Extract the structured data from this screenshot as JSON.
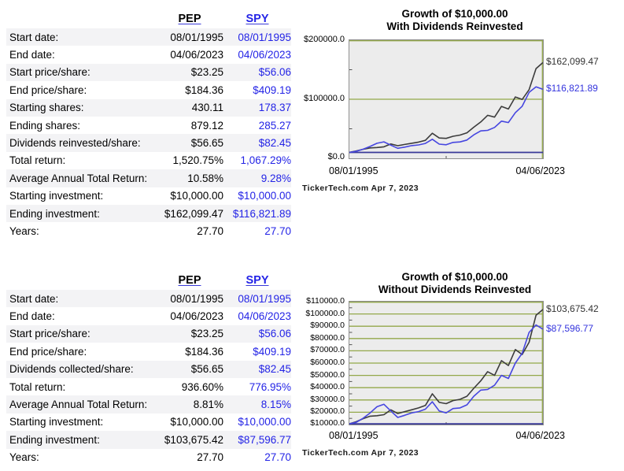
{
  "colors": {
    "pep_line": "#3c3c3c",
    "spy_line": "#4646e0",
    "spy_text": "#2323e6",
    "grid_green": "#93a84a",
    "baseline_navy": "#3a3a99",
    "plot_bg": "#ececec",
    "row_alt_bg": "#f3f3f5"
  },
  "tables": [
    {
      "columns": [
        "PEP",
        "SPY"
      ],
      "rows": [
        {
          "label": "Start date:",
          "pep": "08/01/1995",
          "spy": "08/01/1995"
        },
        {
          "label": "End date:",
          "pep": "04/06/2023",
          "spy": "04/06/2023"
        },
        {
          "label": "Start price/share:",
          "pep": "$23.25",
          "spy": "$56.06"
        },
        {
          "label": "End price/share:",
          "pep": "$184.36",
          "spy": "$409.19"
        },
        {
          "label": "Starting shares:",
          "pep": "430.11",
          "spy": "178.37"
        },
        {
          "label": "Ending shares:",
          "pep": "879.12",
          "spy": "285.27"
        },
        {
          "label": "Dividends reinvested/share:",
          "pep": "$56.65",
          "spy": "$82.45"
        },
        {
          "label": "Total return:",
          "pep": "1,520.75%",
          "spy": "1,067.29%"
        },
        {
          "label": "Average Annual Total Return:",
          "pep": "10.58%",
          "spy": "9.28%"
        },
        {
          "label": "Starting investment:",
          "pep": "$10,000.00",
          "spy": "$10,000.00"
        },
        {
          "label": "Ending investment:",
          "pep": "$162,099.47",
          "spy": "$116,821.89"
        },
        {
          "label": "Years:",
          "pep": "27.70",
          "spy": "27.70"
        }
      ]
    },
    {
      "columns": [
        "PEP",
        "SPY"
      ],
      "rows": [
        {
          "label": "Start date:",
          "pep": "08/01/1995",
          "spy": "08/01/1995"
        },
        {
          "label": "End date:",
          "pep": "04/06/2023",
          "spy": "04/06/2023"
        },
        {
          "label": "Start price/share:",
          "pep": "$23.25",
          "spy": "$56.06"
        },
        {
          "label": "End price/share:",
          "pep": "$184.36",
          "spy": "$409.19"
        },
        {
          "label": "Dividends collected/share:",
          "pep": "$56.65",
          "spy": "$82.45"
        },
        {
          "label": "Total return:",
          "pep": "936.60%",
          "spy": "776.95%"
        },
        {
          "label": "Average Annual Total Return:",
          "pep": "8.81%",
          "spy": "8.15%"
        },
        {
          "label": "Starting investment:",
          "pep": "$10,000.00",
          "spy": "$10,000.00"
        },
        {
          "label": "Ending investment:",
          "pep": "$103,675.42",
          "spy": "$87,596.77"
        },
        {
          "label": "Years:",
          "pep": "27.70",
          "spy": "27.70"
        }
      ]
    }
  ],
  "chart_data": [
    {
      "type": "line",
      "title": "Growth of $10,000.00",
      "subtitle": "With Dividends Reinvested",
      "xlabel_start": "08/01/1995",
      "xlabel_end": "04/06/2023",
      "attribution": "TickerTech.com  Apr 7, 2023",
      "ylim": [
        0,
        200000
      ],
      "yticks": [
        {
          "label": "$200000.0",
          "value": 200000
        },
        {
          "label": "$100000.0",
          "value": 100000
        },
        {
          "label": "$0.0",
          "value": 0
        }
      ],
      "gridlines": [
        200000,
        100000
      ],
      "grid_color": "#93a84a",
      "baseline": 10000,
      "baseline_color": "#3a3a99",
      "x_years": [
        1995,
        1996,
        1997,
        1998,
        1999,
        2000,
        2001,
        2002,
        2003,
        2004,
        2005,
        2006,
        2007,
        2008,
        2009,
        2010,
        2011,
        2012,
        2013,
        2014,
        2015,
        2016,
        2017,
        2018,
        2019,
        2020,
        2021,
        2022,
        2023
      ],
      "series": [
        {
          "name": "PEP",
          "color": "#3c3c3c",
          "label_color": "#333333",
          "end_label": "$162,099.47",
          "values": [
            10000,
            12500,
            15300,
            17600,
            18300,
            19500,
            24200,
            21300,
            23400,
            25500,
            27500,
            30400,
            42400,
            34400,
            33700,
            37400,
            39300,
            43200,
            52600,
            61500,
            72800,
            69800,
            87900,
            83500,
            103900,
            99600,
            116300,
            151900,
            162099
          ]
        },
        {
          "name": "SPY",
          "color": "#4646e0",
          "label_color": "#3434dd",
          "end_label": "$116,821.89",
          "values": [
            10000,
            11900,
            15500,
            20100,
            25500,
            27900,
            22300,
            16900,
            19000,
            21400,
            22700,
            25200,
            32300,
            24000,
            22900,
            26900,
            27700,
            31000,
            39800,
            46400,
            47400,
            52300,
            63000,
            60500,
            77200,
            88100,
            111600,
            120900,
            116822
          ]
        }
      ]
    },
    {
      "type": "line",
      "title": "Growth of $10,000.00",
      "subtitle": "Without Dividends Reinvested",
      "xlabel_start": "08/01/1995",
      "xlabel_end": "04/06/2023",
      "attribution": "TickerTech.com  Apr 7, 2023",
      "ylim": [
        10000,
        110000
      ],
      "yticks": [
        {
          "label": "$110000.0",
          "value": 110000
        },
        {
          "label": "$100000.0",
          "value": 100000
        },
        {
          "label": "$90000.0",
          "value": 90000
        },
        {
          "label": "$80000.0",
          "value": 80000
        },
        {
          "label": "$70000.0",
          "value": 70000
        },
        {
          "label": "$60000.0",
          "value": 60000
        },
        {
          "label": "$50000.0",
          "value": 50000
        },
        {
          "label": "$40000.0",
          "value": 40000
        },
        {
          "label": "$30000.0",
          "value": 30000
        },
        {
          "label": "$20000.0",
          "value": 20000
        },
        {
          "label": "$10000.0",
          "value": 10000
        }
      ],
      "gridlines": [
        110000,
        100000,
        90000,
        80000,
        70000,
        60000,
        50000,
        40000,
        30000,
        20000
      ],
      "grid_color": "#93a84a",
      "baseline": 10000,
      "baseline_color": "#3a3a99",
      "x_years": [
        1995,
        1996,
        1997,
        1998,
        1999,
        2000,
        2001,
        2002,
        2003,
        2004,
        2005,
        2006,
        2007,
        2008,
        2009,
        2010,
        2011,
        2012,
        2013,
        2014,
        2015,
        2016,
        2017,
        2018,
        2019,
        2020,
        2021,
        2022,
        2023
      ],
      "series": [
        {
          "name": "PEP",
          "color": "#3c3c3c",
          "label_color": "#333333",
          "end_label": "$103,675.42",
          "values": [
            10000,
            12300,
            14800,
            16800,
            17200,
            18000,
            22000,
            19000,
            20500,
            22000,
            23500,
            25500,
            35000,
            28000,
            27000,
            29500,
            30500,
            33000,
            39500,
            45500,
            53000,
            50000,
            62000,
            58000,
            71000,
            67000,
            77000,
            99000,
            103675
          ]
        },
        {
          "name": "SPY",
          "color": "#4646e0",
          "label_color": "#3434dd",
          "end_label": "$87,596.77",
          "values": [
            10000,
            11800,
            15200,
            19500,
            24500,
            26500,
            21000,
            15800,
            17500,
            19500,
            20500,
            22500,
            28500,
            21000,
            19500,
            23000,
            23500,
            26000,
            33000,
            38000,
            38500,
            42000,
            50000,
            47500,
            60000,
            68000,
            85000,
            91000,
            87597
          ]
        }
      ]
    }
  ]
}
